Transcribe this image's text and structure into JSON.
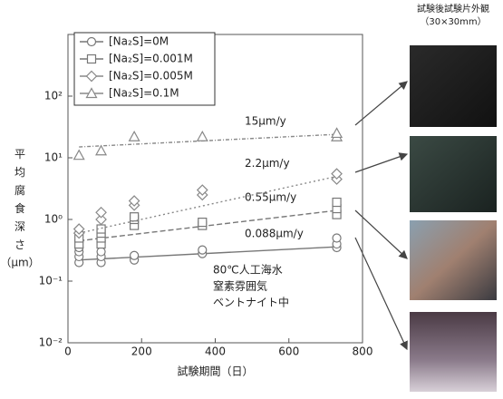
{
  "chart_data": {
    "type": "scatter",
    "xlabel": "試験期間（日）",
    "ylabel": "平均腐食深さ",
    "yunit": "（μm）",
    "xlim": [
      0,
      800
    ],
    "xticks": [
      0,
      200,
      400,
      600,
      800
    ],
    "ylim": [
      0.01,
      1000
    ],
    "log_y": true,
    "yticks": [
      {
        "value": 0.01,
        "label": "10⁻²"
      },
      {
        "value": 0.1,
        "label": "10⁻¹"
      },
      {
        "value": 1,
        "label": "10⁰"
      },
      {
        "value": 10,
        "label": "10¹"
      },
      {
        "value": 100,
        "label": "10²"
      }
    ],
    "grid": false,
    "legend": "upper left",
    "series": [
      {
        "name": "[Na₂S]=0M",
        "marker": "circle",
        "color": "#777777",
        "dash": "solid",
        "x": [
          30,
          30,
          30,
          30,
          30,
          30,
          90,
          90,
          90,
          90,
          180,
          180,
          365,
          365,
          730,
          730,
          730
        ],
        "values": [
          0.2,
          0.25,
          0.3,
          0.35,
          0.45,
          0.6,
          0.2,
          0.25,
          0.3,
          0.45,
          0.22,
          0.26,
          0.28,
          0.32,
          0.35,
          0.4,
          0.5
        ],
        "trend_x": [
          30,
          730
        ],
        "trend_values": [
          0.22,
          0.36
        ],
        "rate": "0.088μm/y"
      },
      {
        "name": "[Na₂S]=0.001M",
        "marker": "square",
        "color": "#777777",
        "dash": "6 3",
        "x": [
          30,
          30,
          90,
          90,
          90,
          90,
          180,
          180,
          180,
          365,
          365,
          730,
          730,
          730
        ],
        "values": [
          0.4,
          0.5,
          0.4,
          0.5,
          0.6,
          0.7,
          0.8,
          1.0,
          1.1,
          0.8,
          0.9,
          1.2,
          1.5,
          1.9
        ],
        "trend_x": [
          30,
          730
        ],
        "trend_values": [
          0.45,
          1.4
        ],
        "rate": "0.55μm/y"
      },
      {
        "name": "[Na₂S]=0.005M",
        "marker": "diamond",
        "color": "#888888",
        "dash": "2 3",
        "x": [
          30,
          30,
          90,
          90,
          180,
          180,
          365,
          365,
          730,
          730
        ],
        "values": [
          0.6,
          0.7,
          1.0,
          1.3,
          1.7,
          2.0,
          2.5,
          3.0,
          4.5,
          5.5
        ],
        "trend_x": [
          30,
          730
        ],
        "trend_values": [
          0.6,
          5
        ],
        "rate": "2.2μm/y"
      },
      {
        "name": "[Na₂S]=0.1M",
        "marker": "triangle",
        "color": "#888888",
        "dash": "4 2 1 2",
        "x": [
          30,
          90,
          180,
          365,
          730,
          730
        ],
        "values": [
          11,
          13,
          22,
          22,
          22,
          25
        ],
        "trend_x": [
          30,
          730
        ],
        "trend_values": [
          15,
          24
        ],
        "rate": "15μm/y"
      }
    ],
    "conditions": [
      "80℃人工海水",
      "窒素雰囲気",
      "ベントナイト中"
    ]
  },
  "photos": {
    "title": "試験後試験片外観",
    "subtitle": "（30×30mm）"
  }
}
